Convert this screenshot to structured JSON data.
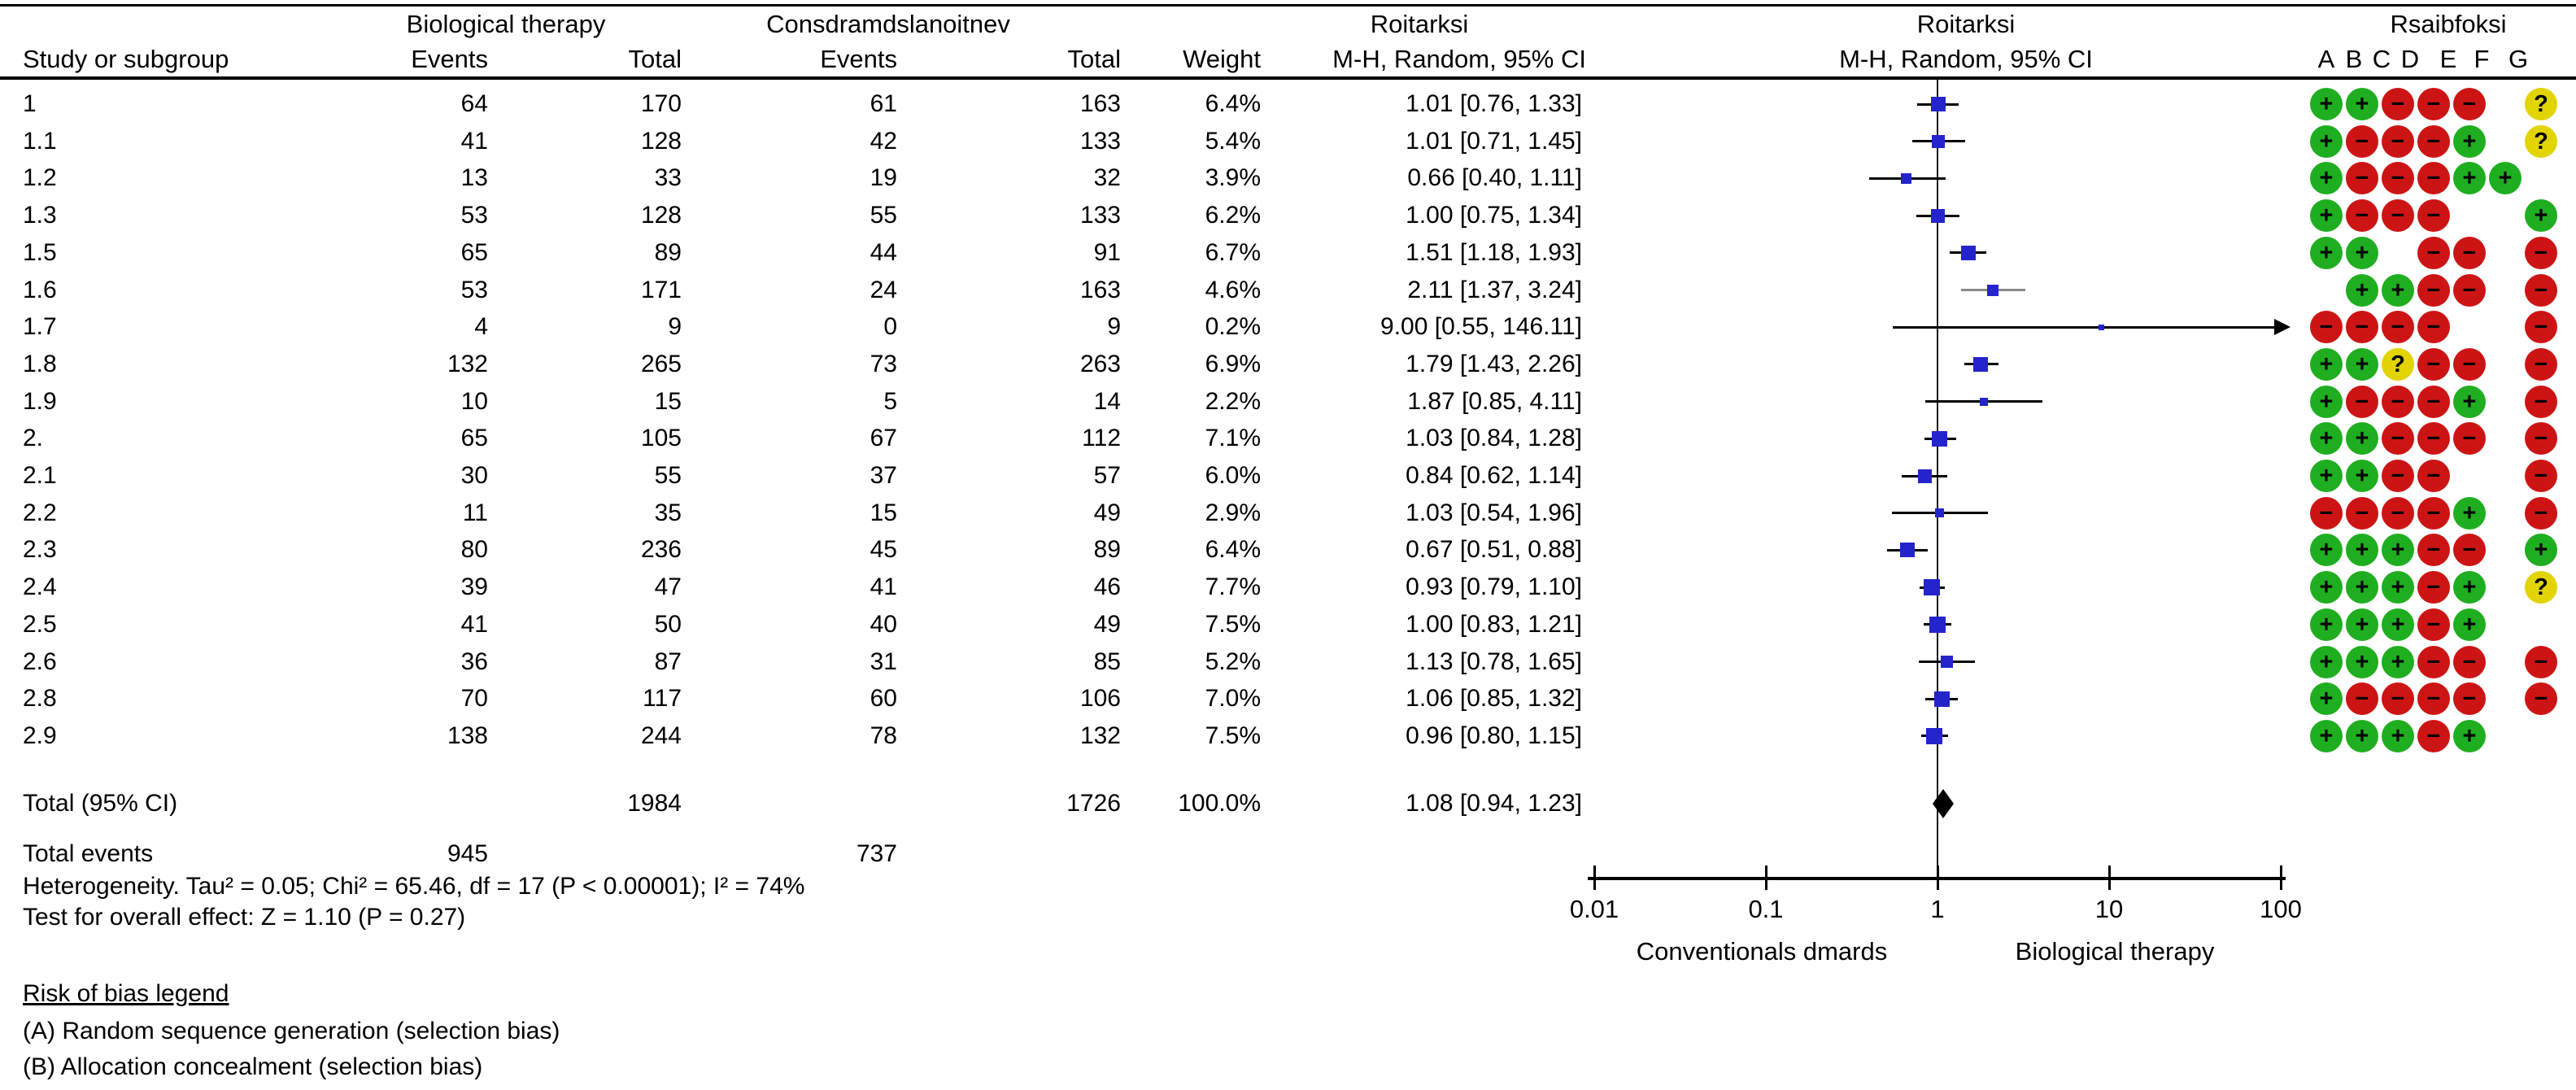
{
  "header": {
    "col_study": "Study or subgroup",
    "group1": {
      "title": "Biological  therapy",
      "events": "Events",
      "total": "Total"
    },
    "group2": {
      "title": "Consdramdslanoitnev",
      "events": "Events",
      "total": "Total"
    },
    "col_weight": "Weight",
    "ratio_text": {
      "title": "Roitarksi",
      "subtitle": "M-H, Random, 95% CI"
    },
    "ratio_plot": {
      "title": "Roitarksi",
      "subtitle": "M-H, Random, 95% CI"
    },
    "rob": {
      "title": "Rsaibfoksi",
      "letters": [
        "A",
        "B",
        "C",
        "D",
        "E",
        "F",
        "G"
      ]
    }
  },
  "totals": {
    "label": "Total (95% CI)",
    "n1": "1984",
    "n2": "1726",
    "weight": "100.0%",
    "ci_text": "1.08 [0.94, 1.23]",
    "rr": 1.08,
    "lo": 0.94,
    "hi": 1.23,
    "events_label": "Total events",
    "e1": "945",
    "e2": "737"
  },
  "footer": {
    "heterogeneity": "Heterogeneity. Tau² = 0.05; Chi² = 65.46, df = 17 (P < 0.00001); I² = 74%",
    "overall": "Test for overall effect: Z = 1.10 (P = 0.27)",
    "rob_legend_title": "Risk of bias legend",
    "rob_items": [
      "(A) Random sequence generation (selection bias)",
      "(B) Allocation concealment (selection bias)"
    ]
  },
  "colors": {
    "marker_blue": "#2424CC",
    "rob_low_green": "#1FAE1F",
    "rob_high_red": "#CD1414",
    "rob_unclear_yellow": "#E2D400",
    "line_black": "#000000",
    "line_grey": "#8A8A8A"
  },
  "chart_data": {
    "type": "forest",
    "effect_measure": "M-H, Random, 95% CI",
    "axis": {
      "scale": "log",
      "ticks": [
        0.01,
        0.1,
        1,
        10,
        100
      ],
      "tick_labels": [
        "0.01",
        "0.1",
        "1",
        "10",
        "100"
      ],
      "label_left": "Conventionals dmards",
      "label_right": "Biological therapy"
    },
    "rob_symbol_legend": {
      "+": "low risk (green)",
      "-": "high risk (red)",
      "?": "unclear (yellow)"
    },
    "studies": [
      {
        "id": "1",
        "e1": "64",
        "n1": "170",
        "e2": "61",
        "n2": "163",
        "weight": "6.4%",
        "rr": 1.01,
        "lo": 0.76,
        "hi": 1.33,
        "ci_text": "1.01 [0.76, 1.33]",
        "arrow": false,
        "grey": false,
        "rob": [
          "+",
          "+",
          "-",
          "-",
          "-",
          "",
          "?"
        ]
      },
      {
        "id": "1.1",
        "e1": "41",
        "n1": "128",
        "e2": "42",
        "n2": "133",
        "weight": "5.4%",
        "rr": 1.01,
        "lo": 0.71,
        "hi": 1.45,
        "ci_text": "1.01 [0.71, 1.45]",
        "arrow": false,
        "grey": false,
        "rob": [
          "+",
          "-",
          "-",
          "-",
          "+",
          "",
          "?"
        ]
      },
      {
        "id": "1.2",
        "e1": "13",
        "n1": "33",
        "e2": "19",
        "n2": "32",
        "weight": "3.9%",
        "rr": 0.66,
        "lo": 0.4,
        "hi": 1.11,
        "ci_text": "0.66 [0.40, 1.11]",
        "arrow": false,
        "grey": false,
        "rob": [
          "+",
          "-",
          "-",
          "-",
          "+",
          "+",
          ""
        ]
      },
      {
        "id": "1.3",
        "e1": "53",
        "n1": "128",
        "e2": "55",
        "n2": "133",
        "weight": "6.2%",
        "rr": 1.0,
        "lo": 0.75,
        "hi": 1.34,
        "ci_text": "1.00 [0.75, 1.34]",
        "arrow": false,
        "grey": false,
        "rob": [
          "+",
          "-",
          "-",
          "-",
          "",
          "",
          "+"
        ]
      },
      {
        "id": "1.5",
        "e1": "65",
        "n1": "89",
        "e2": "44",
        "n2": "91",
        "weight": "6.7%",
        "rr": 1.51,
        "lo": 1.18,
        "hi": 1.93,
        "ci_text": "1.51 [1.18, 1.93]",
        "arrow": false,
        "grey": false,
        "rob": [
          "+",
          "+",
          "",
          "-",
          "-",
          "",
          "-"
        ]
      },
      {
        "id": "1.6",
        "e1": "53",
        "n1": "171",
        "e2": "24",
        "n2": "163",
        "weight": "4.6%",
        "rr": 2.11,
        "lo": 1.37,
        "hi": 3.24,
        "ci_text": "2.11 [1.37, 3.24]",
        "arrow": false,
        "grey": true,
        "rob": [
          "",
          "+",
          "+",
          "-",
          "-",
          "",
          "-"
        ]
      },
      {
        "id": "1.7",
        "e1": "4",
        "n1": "9",
        "e2": "0",
        "n2": "9",
        "weight": "0.2%",
        "rr": 9.0,
        "lo": 0.55,
        "hi": 146.11,
        "ci_text": "9.00 [0.55, 146.11]",
        "arrow": true,
        "grey": false,
        "rob": [
          "-",
          "-",
          "-",
          "-",
          "",
          "",
          "-"
        ]
      },
      {
        "id": "1.8",
        "e1": "132",
        "n1": "265",
        "e2": "73",
        "n2": "263",
        "weight": "6.9%",
        "rr": 1.79,
        "lo": 1.43,
        "hi": 2.26,
        "ci_text": "1.79 [1.43, 2.26]",
        "arrow": false,
        "grey": false,
        "rob": [
          "+",
          "+",
          "?",
          "-",
          "-",
          "",
          "-"
        ]
      },
      {
        "id": "1.9",
        "e1": "10",
        "n1": "15",
        "e2": "5",
        "n2": "14",
        "weight": "2.2%",
        "rr": 1.87,
        "lo": 0.85,
        "hi": 4.11,
        "ci_text": "1.87 [0.85, 4.11]",
        "arrow": false,
        "grey": false,
        "rob": [
          "+",
          "-",
          "-",
          "-",
          "+",
          "",
          "-"
        ]
      },
      {
        "id": "2.",
        "e1": "65",
        "n1": "105",
        "e2": "67",
        "n2": "112",
        "weight": "7.1%",
        "rr": 1.03,
        "lo": 0.84,
        "hi": 1.28,
        "ci_text": "1.03 [0.84, 1.28]",
        "arrow": false,
        "grey": false,
        "rob": [
          "+",
          "+",
          "-",
          "-",
          "-",
          "",
          "-"
        ]
      },
      {
        "id": "2.1",
        "e1": "30",
        "n1": "55",
        "e2": "37",
        "n2": "57",
        "weight": "6.0%",
        "rr": 0.84,
        "lo": 0.62,
        "hi": 1.14,
        "ci_text": "0.84 [0.62, 1.14]",
        "arrow": false,
        "grey": false,
        "rob": [
          "+",
          "+",
          "-",
          "-",
          "",
          "",
          "-"
        ]
      },
      {
        "id": "2.2",
        "e1": "11",
        "n1": "35",
        "e2": "15",
        "n2": "49",
        "weight": "2.9%",
        "rr": 1.03,
        "lo": 0.54,
        "hi": 1.96,
        "ci_text": "1.03 [0.54, 1.96]",
        "arrow": false,
        "grey": false,
        "rob": [
          "-",
          "-",
          "-",
          "-",
          "+",
          "",
          "-"
        ]
      },
      {
        "id": "2.3",
        "e1": "80",
        "n1": "236",
        "e2": "45",
        "n2": "89",
        "weight": "6.4%",
        "rr": 0.67,
        "lo": 0.51,
        "hi": 0.88,
        "ci_text": "0.67 [0.51, 0.88]",
        "arrow": false,
        "grey": false,
        "rob": [
          "+",
          "+",
          "+",
          "-",
          "-",
          "",
          "+"
        ]
      },
      {
        "id": "2.4",
        "e1": "39",
        "n1": "47",
        "e2": "41",
        "n2": "46",
        "weight": "7.7%",
        "rr": 0.93,
        "lo": 0.79,
        "hi": 1.1,
        "ci_text": "0.93 [0.79, 1.10]",
        "arrow": false,
        "grey": false,
        "rob": [
          "+",
          "+",
          "+",
          "-",
          "+",
          "",
          "?"
        ]
      },
      {
        "id": "2.5",
        "e1": "41",
        "n1": "50",
        "e2": "40",
        "n2": "49",
        "weight": "7.5%",
        "rr": 1.0,
        "lo": 0.83,
        "hi": 1.21,
        "ci_text": "1.00 [0.83, 1.21]",
        "arrow": false,
        "grey": false,
        "rob": [
          "+",
          "+",
          "+",
          "-",
          "+",
          "",
          ""
        ]
      },
      {
        "id": "2.6",
        "e1": "36",
        "n1": "87",
        "e2": "31",
        "n2": "85",
        "weight": "5.2%",
        "rr": 1.13,
        "lo": 0.78,
        "hi": 1.65,
        "ci_text": "1.13 [0.78, 1.65]",
        "arrow": false,
        "grey": false,
        "rob": [
          "+",
          "+",
          "+",
          "-",
          "-",
          "",
          "-"
        ]
      },
      {
        "id": "2.8",
        "e1": "70",
        "n1": "117",
        "e2": "60",
        "n2": "106",
        "weight": "7.0%",
        "rr": 1.06,
        "lo": 0.85,
        "hi": 1.32,
        "ci_text": "1.06 [0.85, 1.32]",
        "arrow": false,
        "grey": false,
        "rob": [
          "+",
          "-",
          "-",
          "-",
          "-",
          "",
          "-"
        ]
      },
      {
        "id": "2.9",
        "e1": "138",
        "n1": "244",
        "e2": "78",
        "n2": "132",
        "weight": "7.5%",
        "rr": 0.96,
        "lo": 0.8,
        "hi": 1.15,
        "ci_text": "0.96 [0.80, 1.15]",
        "arrow": false,
        "grey": false,
        "rob": [
          "+",
          "+",
          "+",
          "-",
          "+",
          "",
          ""
        ]
      }
    ],
    "total": {
      "label": "Total (95% CI)",
      "n1": 1984,
      "n2": 1726,
      "weight": "100.0%",
      "rr": 1.08,
      "lo": 0.94,
      "hi": 1.23,
      "total_events_1": 945,
      "total_events_2": 737
    },
    "heterogeneity": {
      "tau2": 0.05,
      "chi2": 65.46,
      "df": 17,
      "p": "< 0.00001",
      "i2": "74%"
    },
    "overall_effect": {
      "z": 1.1,
      "p": 0.27
    }
  }
}
